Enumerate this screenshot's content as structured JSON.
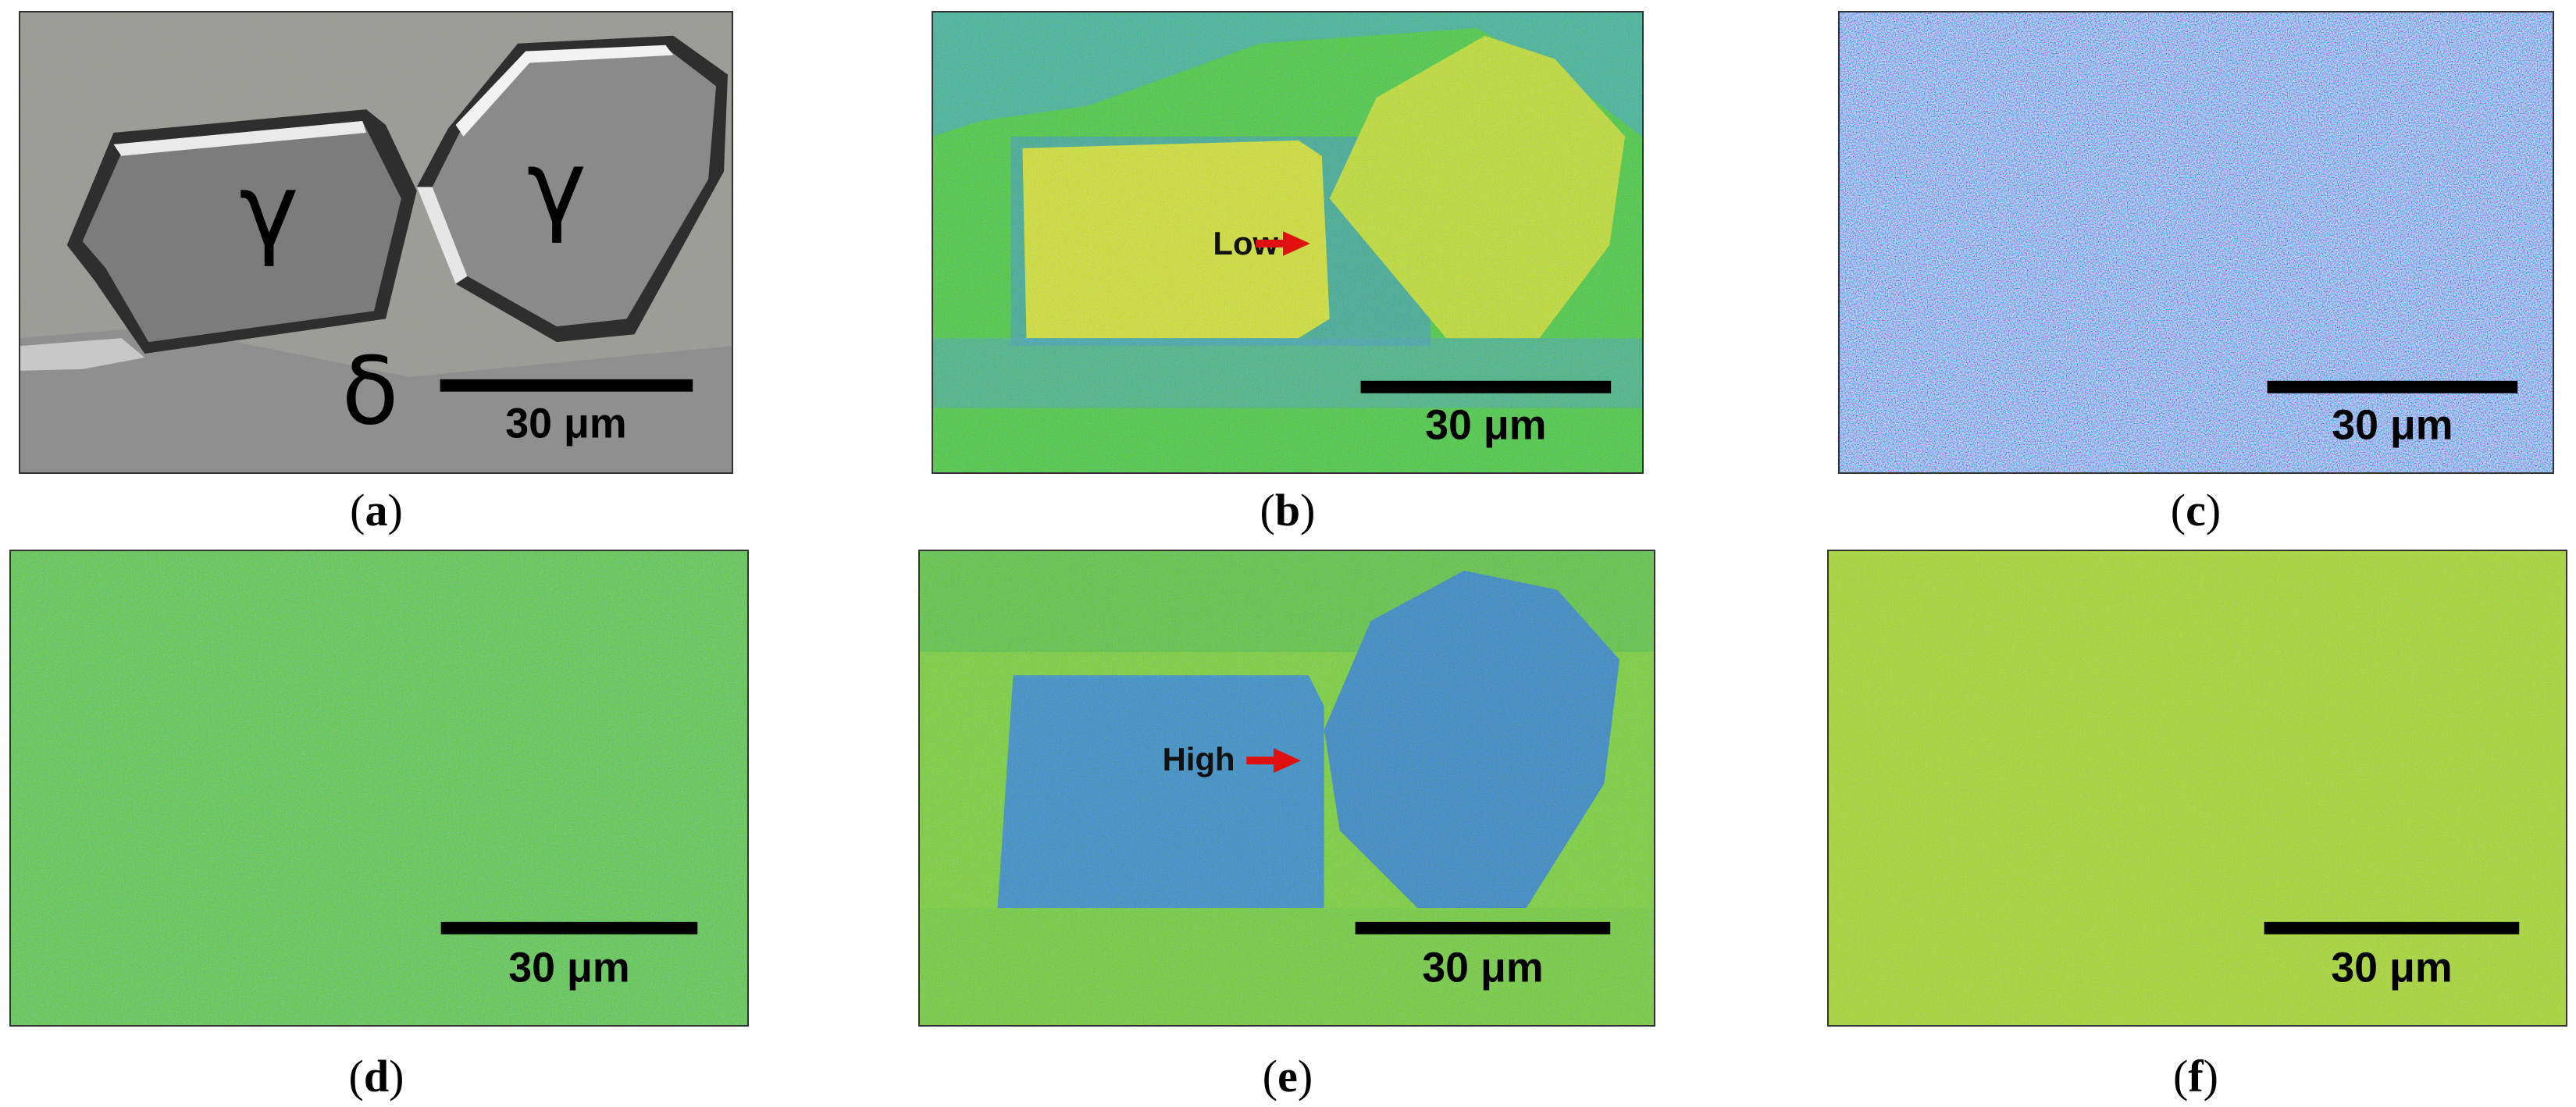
{
  "scale_bar": "30 μm",
  "panels": [
    {
      "id": "a",
      "label": "a",
      "phase_labels": [
        "γ",
        "γ",
        "δ"
      ]
    },
    {
      "id": "b",
      "label": "b",
      "annotation": "Low"
    },
    {
      "id": "c",
      "label": "c"
    },
    {
      "id": "d",
      "label": "d"
    },
    {
      "id": "e",
      "label": "e",
      "annotation": "High"
    },
    {
      "id": "f",
      "label": "f"
    }
  ],
  "colors": {
    "arrow": "#e01010",
    "scale_bar": "#000000",
    "sem_background": "#9a9a9a",
    "map_green": "#3ccd3c",
    "map_blue": "#2a86e0",
    "map_yellow": "#e6e832",
    "map_navy": "#1a1acc",
    "map_cyan": "#9ef0f8"
  }
}
